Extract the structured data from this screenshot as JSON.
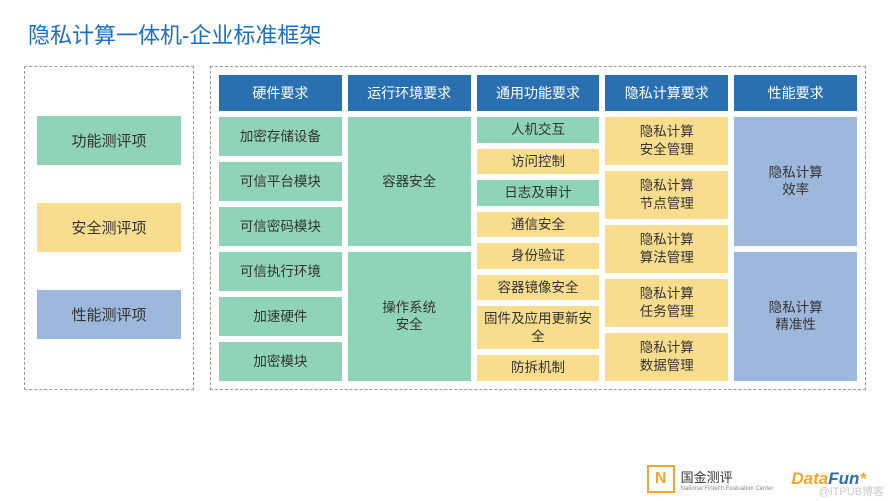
{
  "title": "隐私计算一体机-企业标准框架",
  "colors": {
    "header_blue": "#2a6fb0",
    "green": "#8fd4b8",
    "yellow": "#f8dd8f",
    "blue_cell": "#9db8dc",
    "title_color": "#1b6fc2"
  },
  "left_panel": {
    "items": [
      {
        "label": "功能测评项",
        "bg": "#8fd4b8"
      },
      {
        "label": "安全测评项",
        "bg": "#f8dd8f"
      },
      {
        "label": "性能测评项",
        "bg": "#9db8dc"
      }
    ]
  },
  "columns": [
    {
      "header": "硬件要求",
      "cells": [
        {
          "label": "加密存储设备",
          "bg": "#8fd4b8",
          "flex": 1
        },
        {
          "label": "可信平台模块",
          "bg": "#8fd4b8",
          "flex": 1
        },
        {
          "label": "可信密码模块",
          "bg": "#8fd4b8",
          "flex": 1
        },
        {
          "label": "可信执行环境",
          "bg": "#8fd4b8",
          "flex": 1
        },
        {
          "label": "加速硬件",
          "bg": "#8fd4b8",
          "flex": 1
        },
        {
          "label": "加密模块",
          "bg": "#8fd4b8",
          "flex": 1
        }
      ]
    },
    {
      "header": "运行环境要求",
      "cells": [
        {
          "label": "容器安全",
          "bg": "#8fd4b8",
          "flex": 1
        },
        {
          "label": "操作系统\n安全",
          "bg": "#8fd4b8",
          "flex": 1
        }
      ]
    },
    {
      "header": "通用功能要求",
      "cells": [
        {
          "label": "人机交互",
          "bg": "#8fd4b8",
          "flex": 1
        },
        {
          "label": "访问控制",
          "bg": "#f8dd8f",
          "flex": 1
        },
        {
          "label": "日志及审计",
          "bg": "#8fd4b8",
          "flex": 1
        },
        {
          "label": "通信安全",
          "bg": "#f8dd8f",
          "flex": 1
        },
        {
          "label": "身份验证",
          "bg": "#f8dd8f",
          "flex": 1
        },
        {
          "label": "容器镜像安全",
          "bg": "#f8dd8f",
          "flex": 1
        },
        {
          "label": "固件及应用更新安全",
          "bg": "#f8dd8f",
          "flex": 1
        },
        {
          "label": "防拆机制",
          "bg": "#f8dd8f",
          "flex": 1
        }
      ]
    },
    {
      "header": "隐私计算要求",
      "cells": [
        {
          "label": "隐私计算\n安全管理",
          "bg": "#f8dd8f",
          "flex": 1
        },
        {
          "label": "隐私计算\n节点管理",
          "bg": "#f8dd8f",
          "flex": 1
        },
        {
          "label": "隐私计算\n算法管理",
          "bg": "#f8dd8f",
          "flex": 1
        },
        {
          "label": "隐私计算\n任务管理",
          "bg": "#f8dd8f",
          "flex": 1
        },
        {
          "label": "隐私计算\n数据管理",
          "bg": "#f8dd8f",
          "flex": 1
        }
      ]
    },
    {
      "header": "性能要求",
      "cells": [
        {
          "label": "隐私计算\n效率",
          "bg": "#9db8dc",
          "flex": 1
        },
        {
          "label": "隐私计算\n精准性",
          "bg": "#9db8dc",
          "flex": 1
        }
      ]
    }
  ],
  "footer": {
    "guojin_cn": "国金测评",
    "guojin_en": "National Fintech Evaluation Center",
    "datafun_html": "<span style='color:#f5a623'>Data</span><span style='color:#2a6fb0'>Fun</span><span style='color:#f5a623'>*</span>"
  },
  "watermark": "@ITPUB博客"
}
